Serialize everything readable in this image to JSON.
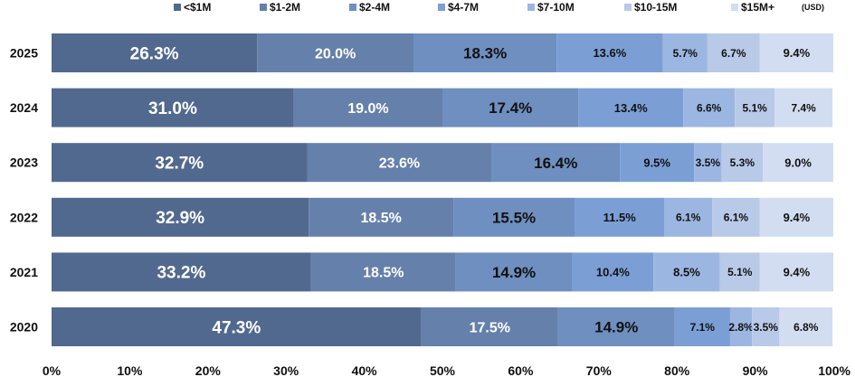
{
  "chart_data": {
    "type": "bar",
    "orientation": "horizontal",
    "stacked": true,
    "percent_scale": true,
    "categories": [
      "2025",
      "2024",
      "2023",
      "2022",
      "2021",
      "2020"
    ],
    "series": [
      {
        "name": "<$1M",
        "color": "#52698f",
        "values": [
          26.3,
          31.0,
          32.7,
          32.9,
          33.2,
          47.3
        ]
      },
      {
        "name": "$1-2M",
        "color": "#6580ab",
        "values": [
          20.0,
          19.0,
          23.6,
          18.5,
          18.5,
          17.5
        ]
      },
      {
        "name": "$2-4M",
        "color": "#6e8fbf",
        "values": [
          18.3,
          17.4,
          16.4,
          15.5,
          14.9,
          14.9
        ]
      },
      {
        "name": "$4-7M",
        "color": "#7b9fd5",
        "values": [
          13.6,
          13.4,
          9.5,
          11.5,
          10.4,
          7.1
        ]
      },
      {
        "name": "$7-10M",
        "color": "#9cb6e2",
        "values": [
          5.7,
          6.6,
          3.5,
          6.1,
          8.5,
          2.8
        ]
      },
      {
        "name": "$10-15M",
        "color": "#b9c9e8",
        "values": [
          6.7,
          5.1,
          5.3,
          6.1,
          5.1,
          3.5
        ]
      },
      {
        "name": "$15M+",
        "color": "#d3ddf1",
        "values": [
          9.4,
          7.4,
          9.0,
          9.4,
          9.4,
          6.8
        ]
      }
    ],
    "data_labels": [
      [
        "26.3%",
        "20.0%",
        "18.3%",
        "13.6%",
        "5.7%",
        "6.7%",
        "9.4%"
      ],
      [
        "31.0%",
        "19.0%",
        "17.4%",
        "13.4%",
        "6.6%",
        "5.1%",
        "7.4%"
      ],
      [
        "32.7%",
        "23.6%",
        "16.4%",
        "9.5%",
        "3.5%",
        "5.3%",
        "9.0%"
      ],
      [
        "32.9%",
        "18.5%",
        "15.5%",
        "11.5%",
        "6.1%",
        "6.1%",
        "9.4%"
      ],
      [
        "33.2%",
        "18.5%",
        "14.9%",
        "10.4%",
        "8.5%",
        "5.1%",
        "9.4%"
      ],
      [
        "47.3%",
        "17.5%",
        "14.9%",
        "7.1%",
        "2.8%",
        "3.5%",
        "6.8%"
      ]
    ],
    "x_ticks": [
      "0%",
      "10%",
      "20%",
      "30%",
      "40%",
      "50%",
      "60%",
      "70%",
      "80%",
      "90%",
      "100%"
    ],
    "xlim": [
      0,
      100
    ],
    "legend_note": "(USD)",
    "legend_position": "top",
    "grid": false,
    "label_colors": {
      "light": "#ffffff",
      "dark": "#111111"
    }
  }
}
